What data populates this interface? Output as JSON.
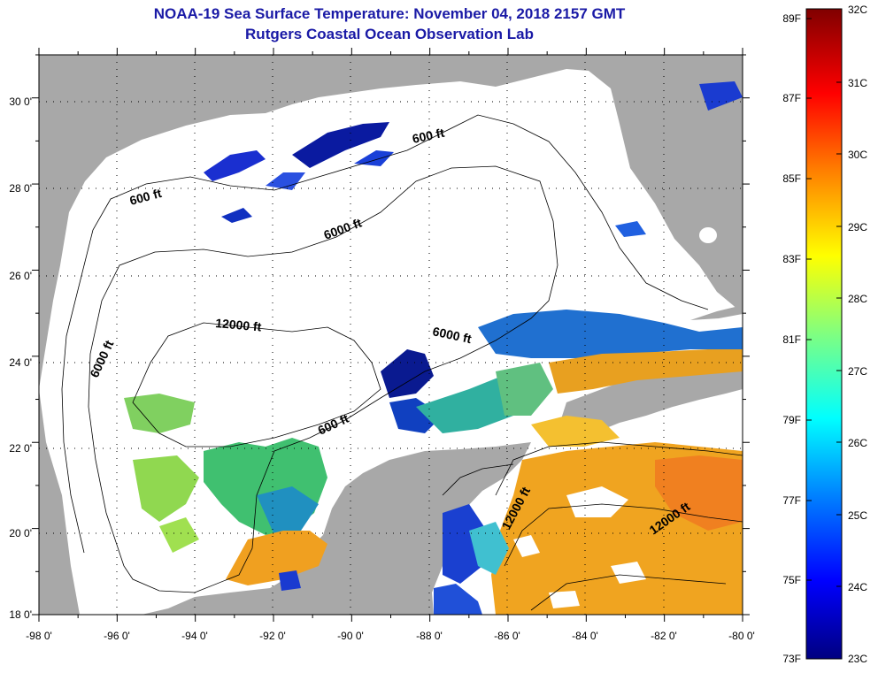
{
  "header": {
    "title": "NOAA-19 Sea Surface Temperature:  November 04, 2018 2157 GMT",
    "subtitle": "Rutgers Coastal Ocean Observation Lab"
  },
  "map": {
    "x_ticks": [
      "-98 0'",
      "-96 0'",
      "-94 0'",
      "-92 0'",
      "-90 0'",
      "-88 0'",
      "-86 0'",
      "-84 0'",
      "-82 0'",
      "-80 0'"
    ],
    "y_ticks": [
      "30 0'",
      "28 0'",
      "26 0'",
      "24 0'",
      "22 0'",
      "20 0'",
      "18 0'"
    ],
    "contour_labels": [
      {
        "text": "600 ft"
      },
      {
        "text": "600 ft"
      },
      {
        "text": "6000 ft"
      },
      {
        "text": "12000 ft"
      },
      {
        "text": "6000 ft"
      },
      {
        "text": "6000 ft"
      },
      {
        "text": "600 ft"
      },
      {
        "text": "12000 ft"
      },
      {
        "text": "12000 ft"
      }
    ],
    "colors": {
      "land": "#a8a8a8",
      "cloud": "#ffffff",
      "frame": "#000000"
    }
  },
  "colorbar": {
    "fahrenheit": [
      "89F",
      "87F",
      "85F",
      "83F",
      "81F",
      "79F",
      "77F",
      "75F",
      "73F"
    ],
    "celsius": [
      "32C",
      "31C",
      "30C",
      "29C",
      "28C",
      "27C",
      "26C",
      "25C",
      "24C",
      "23C"
    ],
    "colors": [
      "#000080",
      "#0000ff",
      "#0080ff",
      "#00ffff",
      "#80ff80",
      "#ffff00",
      "#ff8000",
      "#ff0000",
      "#800000"
    ]
  }
}
